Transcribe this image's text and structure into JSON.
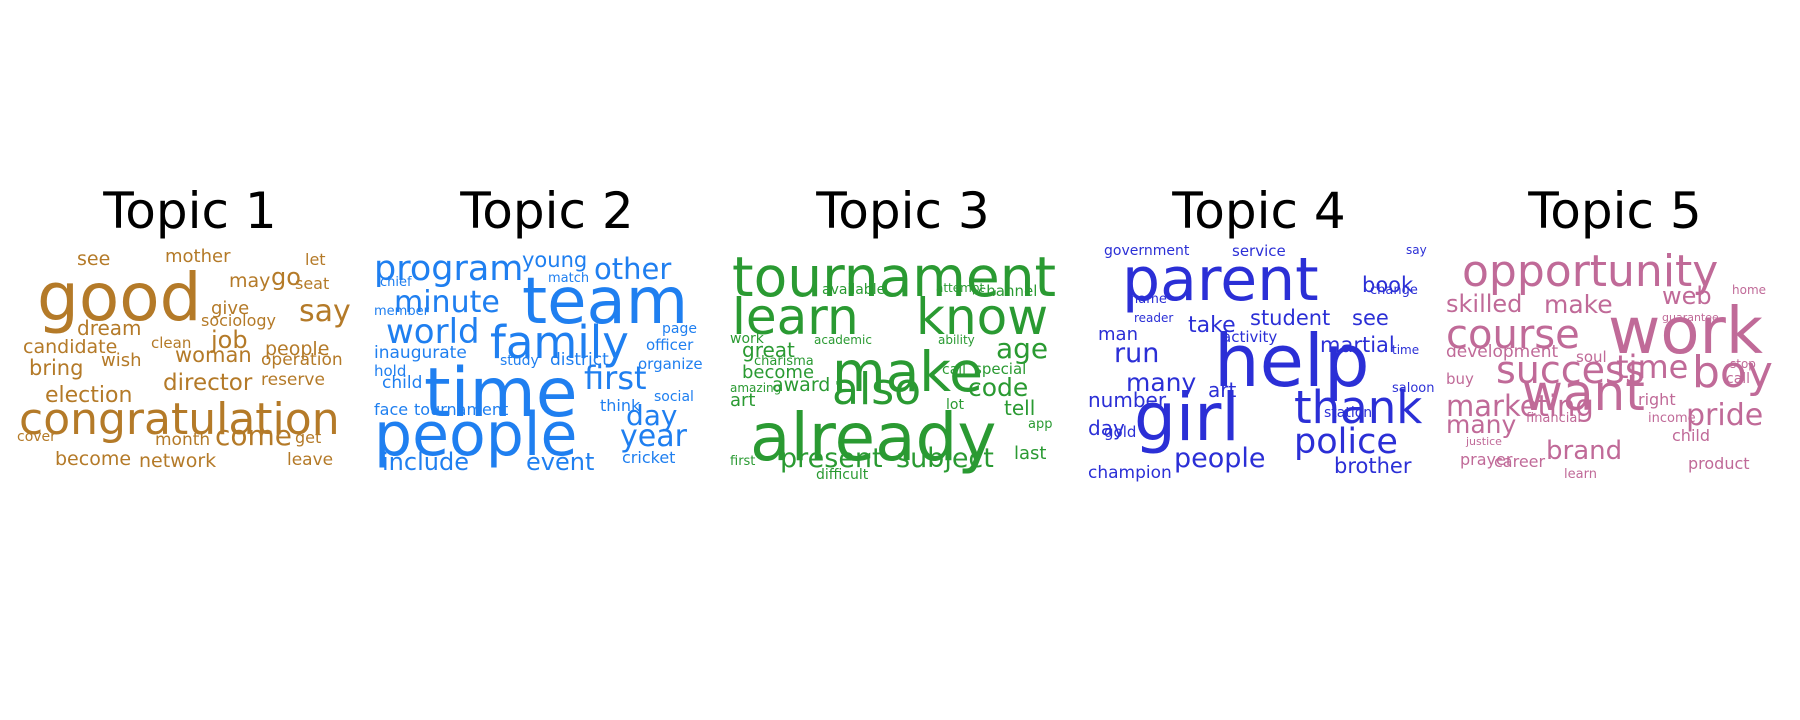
{
  "chart_data": {
    "type": "wordcloud",
    "topics": [
      {
        "title": "Topic 1",
        "color": "#b47a28",
        "words": [
          {
            "text": "good",
            "weight": 66
          },
          {
            "text": "congratulation",
            "weight": 44
          },
          {
            "text": "say",
            "weight": 30
          },
          {
            "text": "come",
            "weight": 28
          },
          {
            "text": "job",
            "weight": 24
          },
          {
            "text": "director",
            "weight": 23
          },
          {
            "text": "election",
            "weight": 22
          },
          {
            "text": "go",
            "weight": 24
          },
          {
            "text": "bring",
            "weight": 21
          },
          {
            "text": "woman",
            "weight": 21
          },
          {
            "text": "candidate",
            "weight": 19
          },
          {
            "text": "dream",
            "weight": 20
          },
          {
            "text": "network",
            "weight": 19
          },
          {
            "text": "people",
            "weight": 19
          },
          {
            "text": "become",
            "weight": 19
          },
          {
            "text": "may",
            "weight": 19
          },
          {
            "text": "see",
            "weight": 19
          },
          {
            "text": "mother",
            "weight": 18
          },
          {
            "text": "wish",
            "weight": 18
          },
          {
            "text": "give",
            "weight": 18
          },
          {
            "text": "reserve",
            "weight": 17
          },
          {
            "text": "operation",
            "weight": 17
          },
          {
            "text": "leave",
            "weight": 17
          },
          {
            "text": "month",
            "weight": 17
          },
          {
            "text": "sociology",
            "weight": 16
          },
          {
            "text": "seat",
            "weight": 16
          },
          {
            "text": "let",
            "weight": 16
          },
          {
            "text": "clean",
            "weight": 15
          },
          {
            "text": "get",
            "weight": 16
          },
          {
            "text": "cover",
            "weight": 14
          }
        ]
      },
      {
        "title": "Topic 2",
        "color": "#1f7ff0",
        "words": [
          {
            "text": "time",
            "weight": 68
          },
          {
            "text": "team",
            "weight": 64
          },
          {
            "text": "people",
            "weight": 60
          },
          {
            "text": "family",
            "weight": 45
          },
          {
            "text": "program",
            "weight": 35
          },
          {
            "text": "world",
            "weight": 34
          },
          {
            "text": "first",
            "weight": 32
          },
          {
            "text": "minute",
            "weight": 30
          },
          {
            "text": "year",
            "weight": 30
          },
          {
            "text": "other",
            "weight": 29
          },
          {
            "text": "day",
            "weight": 28
          },
          {
            "text": "include",
            "weight": 24
          },
          {
            "text": "event",
            "weight": 24
          },
          {
            "text": "young",
            "weight": 21
          },
          {
            "text": "inaugurate",
            "weight": 17
          },
          {
            "text": "child",
            "weight": 17
          },
          {
            "text": "district",
            "weight": 17
          },
          {
            "text": "cricket",
            "weight": 16
          },
          {
            "text": "tournament",
            "weight": 16
          },
          {
            "text": "think",
            "weight": 16
          },
          {
            "text": "face",
            "weight": 16
          },
          {
            "text": "hold",
            "weight": 15
          },
          {
            "text": "officer",
            "weight": 15
          },
          {
            "text": "organize",
            "weight": 15
          },
          {
            "text": "social",
            "weight": 14
          },
          {
            "text": "page",
            "weight": 14
          },
          {
            "text": "study",
            "weight": 14
          },
          {
            "text": "member",
            "weight": 13
          },
          {
            "text": "chief",
            "weight": 13
          },
          {
            "text": "match",
            "weight": 13
          }
        ]
      },
      {
        "title": "Topic 3",
        "color": "#2a9a32",
        "words": [
          {
            "text": "already",
            "weight": 66
          },
          {
            "text": "make",
            "weight": 55
          },
          {
            "text": "tournament",
            "weight": 55
          },
          {
            "text": "learn",
            "weight": 50
          },
          {
            "text": "know",
            "weight": 50
          },
          {
            "text": "also",
            "weight": 44
          },
          {
            "text": "age",
            "weight": 28
          },
          {
            "text": "present",
            "weight": 27
          },
          {
            "text": "subject",
            "weight": 27
          },
          {
            "text": "code",
            "weight": 25
          },
          {
            "text": "great",
            "weight": 20
          },
          {
            "text": "tell",
            "weight": 20
          },
          {
            "text": "award",
            "weight": 19
          },
          {
            "text": "become",
            "weight": 18
          },
          {
            "text": "art",
            "weight": 18
          },
          {
            "text": "last",
            "weight": 18
          },
          {
            "text": "special",
            "weight": 15
          },
          {
            "text": "channel",
            "weight": 15
          },
          {
            "text": "available",
            "weight": 14
          },
          {
            "text": "call",
            "weight": 14
          },
          {
            "text": "lot",
            "weight": 14
          },
          {
            "text": "work",
            "weight": 14
          },
          {
            "text": "charisma",
            "weight": 13
          },
          {
            "text": "difficult",
            "weight": 14
          },
          {
            "text": "first",
            "weight": 13
          },
          {
            "text": "app",
            "weight": 13
          },
          {
            "text": "academic",
            "weight": 12
          },
          {
            "text": "ability",
            "weight": 12
          },
          {
            "text": "attempt",
            "weight": 12
          },
          {
            "text": "amazing",
            "weight": 12
          }
        ]
      },
      {
        "title": "Topic 4",
        "color": "#2b2fd6",
        "words": [
          {
            "text": "help",
            "weight": 72
          },
          {
            "text": "girl",
            "weight": 66
          },
          {
            "text": "parent",
            "weight": 60
          },
          {
            "text": "thank",
            "weight": 45
          },
          {
            "text": "police",
            "weight": 35
          },
          {
            "text": "people",
            "weight": 27
          },
          {
            "text": "run",
            "weight": 27
          },
          {
            "text": "many",
            "weight": 25
          },
          {
            "text": "take",
            "weight": 22
          },
          {
            "text": "martial",
            "weight": 21
          },
          {
            "text": "book",
            "weight": 21
          },
          {
            "text": "brother",
            "weight": 21
          },
          {
            "text": "student",
            "weight": 21
          },
          {
            "text": "see",
            "weight": 21
          },
          {
            "text": "number",
            "weight": 20
          },
          {
            "text": "day",
            "weight": 20
          },
          {
            "text": "art",
            "weight": 20
          },
          {
            "text": "man",
            "weight": 18
          },
          {
            "text": "champion",
            "weight": 17
          },
          {
            "text": "activity",
            "weight": 15
          },
          {
            "text": "service",
            "weight": 15
          },
          {
            "text": "gold",
            "weight": 15
          },
          {
            "text": "government",
            "weight": 14
          },
          {
            "text": "station",
            "weight": 14
          },
          {
            "text": "saloon",
            "weight": 13
          },
          {
            "text": "name",
            "weight": 13
          },
          {
            "text": "change",
            "weight": 13
          },
          {
            "text": "reader",
            "weight": 12
          },
          {
            "text": "say",
            "weight": 12
          },
          {
            "text": "time",
            "weight": 12
          }
        ]
      },
      {
        "title": "Topic 5",
        "color": "#c06a98",
        "words": [
          {
            "text": "work",
            "weight": 64
          },
          {
            "text": "want",
            "weight": 50
          },
          {
            "text": "opportunity",
            "weight": 44
          },
          {
            "text": "course",
            "weight": 40
          },
          {
            "text": "boy",
            "weight": 44
          },
          {
            "text": "success",
            "weight": 38
          },
          {
            "text": "time",
            "weight": 32
          },
          {
            "text": "pride",
            "weight": 30
          },
          {
            "text": "marketing",
            "weight": 29
          },
          {
            "text": "brand",
            "weight": 26
          },
          {
            "text": "many",
            "weight": 25
          },
          {
            "text": "make",
            "weight": 25
          },
          {
            "text": "skilled",
            "weight": 24
          },
          {
            "text": "web",
            "weight": 24
          },
          {
            "text": "development",
            "weight": 17
          },
          {
            "text": "child",
            "weight": 16
          },
          {
            "text": "right",
            "weight": 16
          },
          {
            "text": "career",
            "weight": 16
          },
          {
            "text": "product",
            "weight": 16
          },
          {
            "text": "prayer",
            "weight": 16
          },
          {
            "text": "soul",
            "weight": 15
          },
          {
            "text": "buy",
            "weight": 15
          },
          {
            "text": "call",
            "weight": 14
          },
          {
            "text": "income",
            "weight": 13
          },
          {
            "text": "financial",
            "weight": 13
          },
          {
            "text": "learn",
            "weight": 13
          },
          {
            "text": "home",
            "weight": 12
          },
          {
            "text": "stop",
            "weight": 12
          },
          {
            "text": "guarantee",
            "weight": 11
          },
          {
            "text": "justice",
            "weight": 11
          }
        ]
      }
    ]
  }
}
